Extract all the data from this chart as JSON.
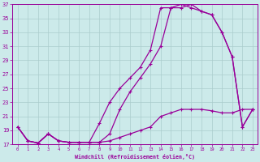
{
  "xlabel": "Windchill (Refroidissement éolien,°C)",
  "background_color": "#cceaea",
  "grid_color": "#aacccc",
  "line_color": "#990099",
  "xlim": [
    -0.5,
    23.5
  ],
  "ylim": [
    17,
    37
  ],
  "yticks": [
    17,
    19,
    21,
    23,
    25,
    27,
    29,
    31,
    33,
    35,
    37
  ],
  "xticks": [
    0,
    1,
    2,
    3,
    4,
    5,
    6,
    7,
    8,
    9,
    10,
    11,
    12,
    13,
    14,
    15,
    16,
    17,
    18,
    19,
    20,
    21,
    22,
    23
  ],
  "curve1_x": [
    0,
    1,
    2,
    3,
    4,
    5,
    6,
    7,
    8,
    9,
    10,
    11,
    12,
    13,
    14,
    15,
    16,
    17,
    18,
    19,
    20,
    21,
    22,
    23
  ],
  "curve1_y": [
    19.5,
    17.5,
    17.2,
    18.5,
    17.5,
    17.3,
    17.3,
    17.3,
    17.3,
    17.5,
    18.0,
    18.5,
    19.0,
    19.5,
    21.0,
    21.5,
    22.0,
    22.0,
    22.0,
    21.8,
    21.5,
    21.5,
    22.0,
    22.0
  ],
  "curve2_x": [
    0,
    1,
    2,
    3,
    4,
    5,
    6,
    7,
    8,
    9,
    10,
    11,
    12,
    13,
    14,
    15,
    16,
    17,
    18,
    19,
    20,
    21,
    22,
    23
  ],
  "curve2_y": [
    19.5,
    17.5,
    17.2,
    18.5,
    17.5,
    17.3,
    17.3,
    17.3,
    17.3,
    18.5,
    22.0,
    24.5,
    26.5,
    28.5,
    31.0,
    36.5,
    36.5,
    37.0,
    36.0,
    35.5,
    33.0,
    29.5,
    19.5,
    22.0
  ],
  "curve3_x": [
    0,
    1,
    2,
    3,
    4,
    5,
    6,
    7,
    8,
    9,
    10,
    11,
    12,
    13,
    14,
    15,
    16,
    17,
    18,
    19,
    20,
    21,
    22,
    23
  ],
  "curve3_y": [
    19.5,
    17.5,
    17.2,
    18.5,
    17.5,
    17.3,
    17.3,
    17.3,
    20.0,
    23.0,
    25.0,
    26.5,
    28.0,
    30.5,
    36.5,
    36.5,
    37.0,
    36.5,
    36.0,
    35.5,
    33.0,
    29.5,
    19.5,
    22.0
  ]
}
